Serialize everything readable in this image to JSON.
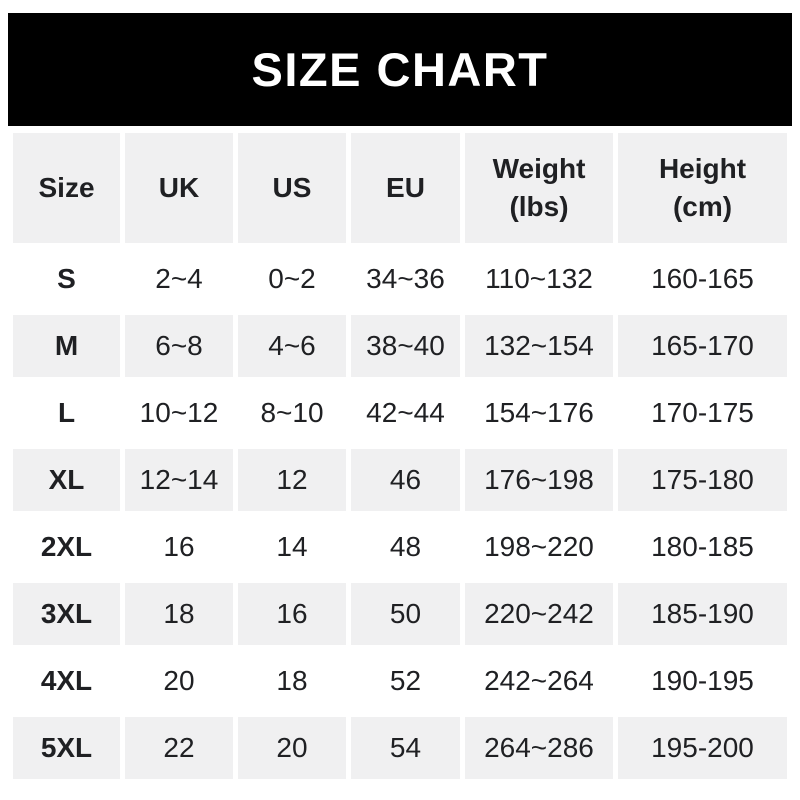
{
  "banner": {
    "title": "SIZE CHART"
  },
  "chart_data": {
    "type": "table",
    "title": "SIZE CHART",
    "columns": [
      {
        "label": "Size",
        "sub": ""
      },
      {
        "label": "UK",
        "sub": ""
      },
      {
        "label": "US",
        "sub": ""
      },
      {
        "label": "EU",
        "sub": ""
      },
      {
        "label": "Weight",
        "sub": "(lbs)"
      },
      {
        "label": "Height",
        "sub": "(cm)"
      }
    ],
    "rows": [
      [
        "S",
        "2~4",
        "0~2",
        "34~36",
        "110~132",
        "160-165"
      ],
      [
        "M",
        "6~8",
        "4~6",
        "38~40",
        "132~154",
        "165-170"
      ],
      [
        "L",
        "10~12",
        "8~10",
        "42~44",
        "154~176",
        "170-175"
      ],
      [
        "XL",
        "12~14",
        "12",
        "46",
        "176~198",
        "175-180"
      ],
      [
        "2XL",
        "16",
        "14",
        "48",
        "198~220",
        "180-185"
      ],
      [
        "3XL",
        "18",
        "16",
        "50",
        "220~242",
        "185-190"
      ],
      [
        "4XL",
        "20",
        "18",
        "52",
        "242~264",
        "190-195"
      ],
      [
        "5XL",
        "22",
        "20",
        "54",
        "264~286",
        "195-200"
      ]
    ]
  },
  "colors": {
    "banner_bg": "#000000",
    "banner_text": "#ffffff",
    "cell_gray": "#f0f0f1",
    "row_white": "#ffffff",
    "text": "#1f2023",
    "page_bg": "#ffffff"
  }
}
